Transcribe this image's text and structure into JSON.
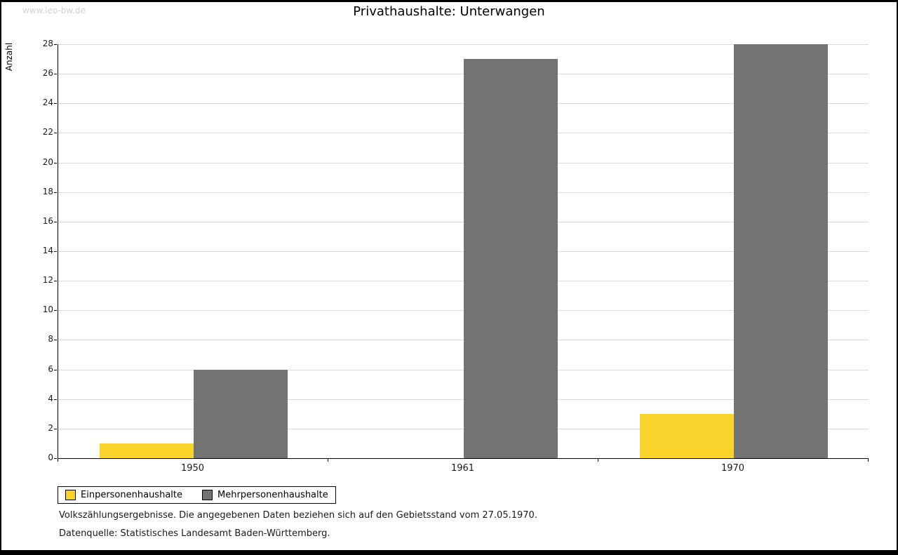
{
  "watermark": "www.leo-bw.de",
  "footnotes": [
    "Volkszählungsergebnisse. Die angegebenen Daten beziehen sich auf den Gebietsstand vom 27.05.1970.",
    "Datenquelle: Statistisches Landesamt Baden-Württemberg."
  ],
  "colors": {
    "yellow": "#F8D32C",
    "gray": "#737373",
    "gridline": "#dcdcdc"
  },
  "chart_data": {
    "type": "bar",
    "title": "Privathaushalte: Unterwangen",
    "xlabel": "",
    "ylabel": "Anzahl",
    "categories": [
      "1950",
      "1961",
      "1970"
    ],
    "series": [
      {
        "name": "Einpersonenhaushalte",
        "color": "#F8D32C",
        "values": [
          1,
          0,
          3
        ]
      },
      {
        "name": "Mehrpersonenhaushalte",
        "color": "#737373",
        "values": [
          6,
          27,
          28
        ]
      }
    ],
    "ylim": [
      0,
      28
    ],
    "ytick_step": 2,
    "grid": true,
    "legend_position": "bottom-left"
  }
}
